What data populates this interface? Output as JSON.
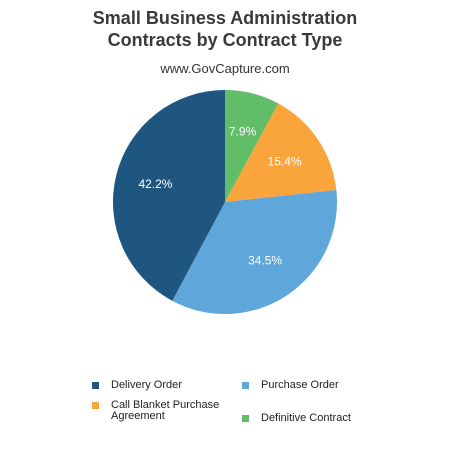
{
  "chart_data": {
    "type": "pie",
    "title_lines": [
      "Small Business Administration",
      "Contracts by Contract Type"
    ],
    "subtitle": "www.GovCapture.com",
    "slices": [
      {
        "name": "Definitive Contract",
        "value": 7.9,
        "label": "7.9%",
        "color": "#62bd69"
      },
      {
        "name": "Call Blanket Purchase Agreement",
        "value": 15.4,
        "label": "15.4%",
        "color": "#f9a53b"
      },
      {
        "name": "Purchase Order",
        "value": 34.5,
        "label": "34.5%",
        "color": "#5fa6db"
      },
      {
        "name": "Delivery Order",
        "value": 42.2,
        "label": "42.2%",
        "color": "#1f567f"
      }
    ],
    "legend": [
      {
        "label": "Delivery Order",
        "color": "#1f567f"
      },
      {
        "label": "Purchase Order",
        "color": "#5fa6db"
      },
      {
        "label": "Call Blanket Purchase Agreement",
        "color": "#f9a53b"
      },
      {
        "label": "Definitive Contract",
        "color": "#62bd69"
      }
    ],
    "legend_placement": "bottom"
  }
}
